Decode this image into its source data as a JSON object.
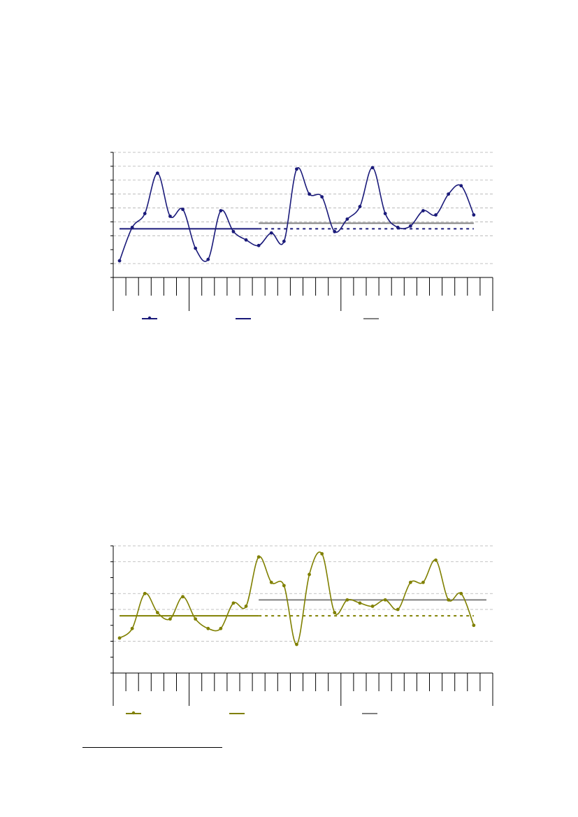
{
  "colors": {
    "series_top": "#1a1a7a",
    "series_bottom": "#808000",
    "reference": "#808080",
    "grid": "#b0b0b0",
    "axis": "#000000"
  },
  "chart_data": [
    {
      "type": "line",
      "markers": true,
      "smooth": true,
      "grid": true,
      "legend_position": "bottom",
      "ylim": [
        0,
        9
      ],
      "x": [
        1,
        2,
        3,
        4,
        5,
        6,
        7,
        8,
        9,
        10,
        11,
        12,
        13,
        14,
        15,
        16,
        17,
        18,
        19,
        20,
        21,
        22,
        23,
        24,
        25,
        26,
        27,
        28,
        29
      ],
      "series": [
        {
          "role": "data",
          "color": "#1a1a7a",
          "values": [
            1.2,
            3.6,
            4.6,
            7.5,
            4.4,
            4.9,
            2.1,
            1.3,
            4.8,
            3.3,
            2.7,
            2.3,
            3.2,
            2.6,
            7.8,
            6.0,
            5.8,
            3.3,
            4.2,
            5.1,
            7.9,
            4.6,
            3.6,
            3.7,
            4.8,
            4.5,
            6.0,
            6.6,
            4.5
          ]
        }
      ],
      "reference_lines": [
        {
          "role": "period-1-mean",
          "color": "#1a1a7a",
          "style": "solid",
          "x_start": 1,
          "x_end": 12,
          "y": 3.5
        },
        {
          "role": "period-1-mean-extended",
          "color": "#1a1a7a",
          "style": "dotted",
          "x_start": 12,
          "x_end": 29,
          "y": 3.5
        },
        {
          "role": "period-2-mean",
          "color": "#808080",
          "style": "solid",
          "x_start": 12,
          "x_end": 29,
          "y": 3.9
        }
      ],
      "legend": [
        {
          "kind": "line-marker",
          "color": "#1a1a7a"
        },
        {
          "kind": "line",
          "color": "#1a1a7a"
        },
        {
          "kind": "line",
          "color": "#808080"
        }
      ]
    },
    {
      "type": "line",
      "markers": true,
      "smooth": true,
      "grid": true,
      "legend_position": "bottom",
      "ylim": [
        0,
        8
      ],
      "x": [
        1,
        2,
        3,
        4,
        5,
        6,
        7,
        8,
        9,
        10,
        11,
        12,
        13,
        14,
        15,
        16,
        17,
        18,
        19,
        20,
        21,
        22,
        23,
        24,
        25,
        26,
        27,
        28,
        29
      ],
      "series": [
        {
          "role": "data",
          "color": "#808000",
          "values": [
            2.2,
            2.8,
            5.0,
            3.8,
            3.4,
            4.8,
            3.4,
            2.8,
            2.8,
            4.4,
            4.2,
            7.3,
            5.7,
            5.5,
            1.8,
            6.2,
            7.5,
            3.8,
            4.6,
            4.4,
            4.2,
            4.6,
            4.0,
            5.7,
            5.7,
            7.1,
            4.6,
            5.0,
            3.0
          ]
        }
      ],
      "reference_lines": [
        {
          "role": "period-1-mean",
          "color": "#808000",
          "style": "solid",
          "x_start": 1,
          "x_end": 12,
          "y": 3.6
        },
        {
          "role": "period-1-mean-extended",
          "color": "#808000",
          "style": "dotted",
          "x_start": 12,
          "x_end": 29,
          "y": 3.6
        },
        {
          "role": "period-2-mean",
          "color": "#808080",
          "style": "solid",
          "x_start": 12,
          "x_end": 30,
          "y": 4.6
        }
      ],
      "legend": [
        {
          "kind": "line-marker",
          "color": "#808000"
        },
        {
          "kind": "line",
          "color": "#808000"
        },
        {
          "kind": "line",
          "color": "#808080"
        }
      ]
    }
  ]
}
